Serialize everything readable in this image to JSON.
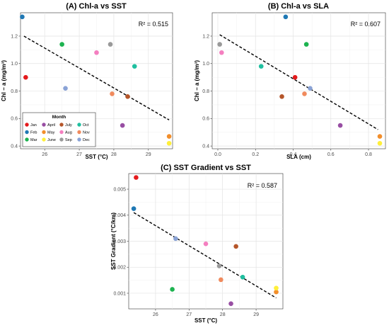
{
  "month_colors": {
    "Jan": "#e41a1c",
    "Feb": "#1f78b4",
    "Mar": "#1db350",
    "April": "#984ea3",
    "May": "#f28e2b",
    "June": "#ffef3a",
    "July": "#b5562a",
    "Aug": "#f47fc0",
    "Sep": "#999999",
    "Oct": "#1fbf9f",
    "Nov": "#f08a5d",
    "Dec": "#8aa3d6"
  },
  "chart_data": [
    {
      "type": "scatter",
      "title": "(A) Chl-a vs SST",
      "xlabel": "SST (°C)",
      "ylabel": "Chl − a (mg/m³)",
      "xlim": [
        25.3,
        29.7
      ],
      "ylim": [
        0.38,
        1.37
      ],
      "xticks": [
        26,
        27,
        28,
        29
      ],
      "yticks": [
        0.4,
        0.6,
        0.8,
        1.0,
        1.2
      ],
      "r2_label": "R² = 0.515",
      "trend": {
        "x1": 25.4,
        "y1": 1.2,
        "x2": 29.6,
        "y2": 0.59
      },
      "points": [
        {
          "month": "Jan",
          "x": 25.45,
          "y": 0.9
        },
        {
          "month": "Feb",
          "x": 25.35,
          "y": 1.34
        },
        {
          "month": "Mar",
          "x": 26.5,
          "y": 1.14
        },
        {
          "month": "April",
          "x": 28.25,
          "y": 0.55
        },
        {
          "month": "May",
          "x": 29.6,
          "y": 0.47
        },
        {
          "month": "June",
          "x": 29.6,
          "y": 0.42
        },
        {
          "month": "July",
          "x": 28.4,
          "y": 0.76
        },
        {
          "month": "Aug",
          "x": 27.5,
          "y": 1.08
        },
        {
          "month": "Sep",
          "x": 27.9,
          "y": 1.14
        },
        {
          "month": "Oct",
          "x": 28.6,
          "y": 0.98
        },
        {
          "month": "Nov",
          "x": 27.95,
          "y": 0.78
        },
        {
          "month": "Dec",
          "x": 26.6,
          "y": 0.82
        }
      ],
      "legend": {
        "title": "Month",
        "placement": "bottom-left",
        "entries": [
          "Jan",
          "April",
          "July",
          "Oct",
          "Feb",
          "May",
          "Aug",
          "Nov",
          "Mar",
          "June",
          "Sep",
          "Dec"
        ]
      }
    },
    {
      "type": "scatter",
      "title": "(B) Chl-a vs SLA",
      "xlabel": "SLA (cm)",
      "ylabel": "Chl − a (mg/m³)",
      "xlim": [
        -0.03,
        0.89
      ],
      "ylim": [
        0.38,
        1.37
      ],
      "xticks": [
        0.0,
        0.2,
        0.4,
        0.6,
        0.8
      ],
      "xtick_labels": [
        "0.0",
        "0.2",
        "0.4",
        "0.6",
        "0.8"
      ],
      "yticks": [
        0.4,
        0.6,
        0.8,
        1.0,
        1.2
      ],
      "r2_label": "R² = 0.607",
      "trend": {
        "x1": 0.01,
        "y1": 1.21,
        "x2": 0.85,
        "y2": 0.52
      },
      "points": [
        {
          "month": "Jan",
          "x": 0.41,
          "y": 0.9
        },
        {
          "month": "Feb",
          "x": 0.36,
          "y": 1.34
        },
        {
          "month": "Mar",
          "x": 0.47,
          "y": 1.14
        },
        {
          "month": "April",
          "x": 0.65,
          "y": 0.55
        },
        {
          "month": "May",
          "x": 0.86,
          "y": 0.47
        },
        {
          "month": "June",
          "x": 0.86,
          "y": 0.42
        },
        {
          "month": "July",
          "x": 0.34,
          "y": 0.76
        },
        {
          "month": "Aug",
          "x": 0.02,
          "y": 1.08
        },
        {
          "month": "Sep",
          "x": 0.01,
          "y": 1.14
        },
        {
          "month": "Oct",
          "x": 0.23,
          "y": 0.98
        },
        {
          "month": "Nov",
          "x": 0.46,
          "y": 0.78
        },
        {
          "month": "Dec",
          "x": 0.49,
          "y": 0.82
        }
      ]
    },
    {
      "type": "scatter",
      "title": "(C) SST Gradient vs SST",
      "xlabel": "SST (°C)",
      "ylabel": "SST Gradient (°C/km)",
      "xlim": [
        25.2,
        29.8
      ],
      "ylim": [
        0.0004,
        0.0056
      ],
      "xticks": [
        26,
        27,
        28,
        29
      ],
      "yticks": [
        0.001,
        0.002,
        0.003,
        0.004,
        0.005
      ],
      "ytick_labels": [
        "0.001",
        "0.002",
        "0.003",
        "0.004",
        "0.005"
      ],
      "r2_label": "R² = 0.587",
      "trend": {
        "x1": 25.35,
        "y1": 0.0041,
        "x2": 29.6,
        "y2": 0.00082
      },
      "points": [
        {
          "month": "Jan",
          "x": 25.42,
          "y": 0.00545
        },
        {
          "month": "Feb",
          "x": 25.35,
          "y": 0.00425
        },
        {
          "month": "Mar",
          "x": 26.5,
          "y": 0.00115
        },
        {
          "month": "April",
          "x": 28.25,
          "y": 0.0006
        },
        {
          "month": "May",
          "x": 29.6,
          "y": 0.00105
        },
        {
          "month": "June",
          "x": 29.6,
          "y": 0.0012
        },
        {
          "month": "July",
          "x": 28.4,
          "y": 0.0028
        },
        {
          "month": "Aug",
          "x": 27.5,
          "y": 0.0029
        },
        {
          "month": "Sep",
          "x": 27.9,
          "y": 0.00205
        },
        {
          "month": "Oct",
          "x": 28.6,
          "y": 0.00162
        },
        {
          "month": "Nov",
          "x": 27.95,
          "y": 0.00152
        },
        {
          "month": "Dec",
          "x": 26.6,
          "y": 0.0031
        }
      ]
    }
  ]
}
